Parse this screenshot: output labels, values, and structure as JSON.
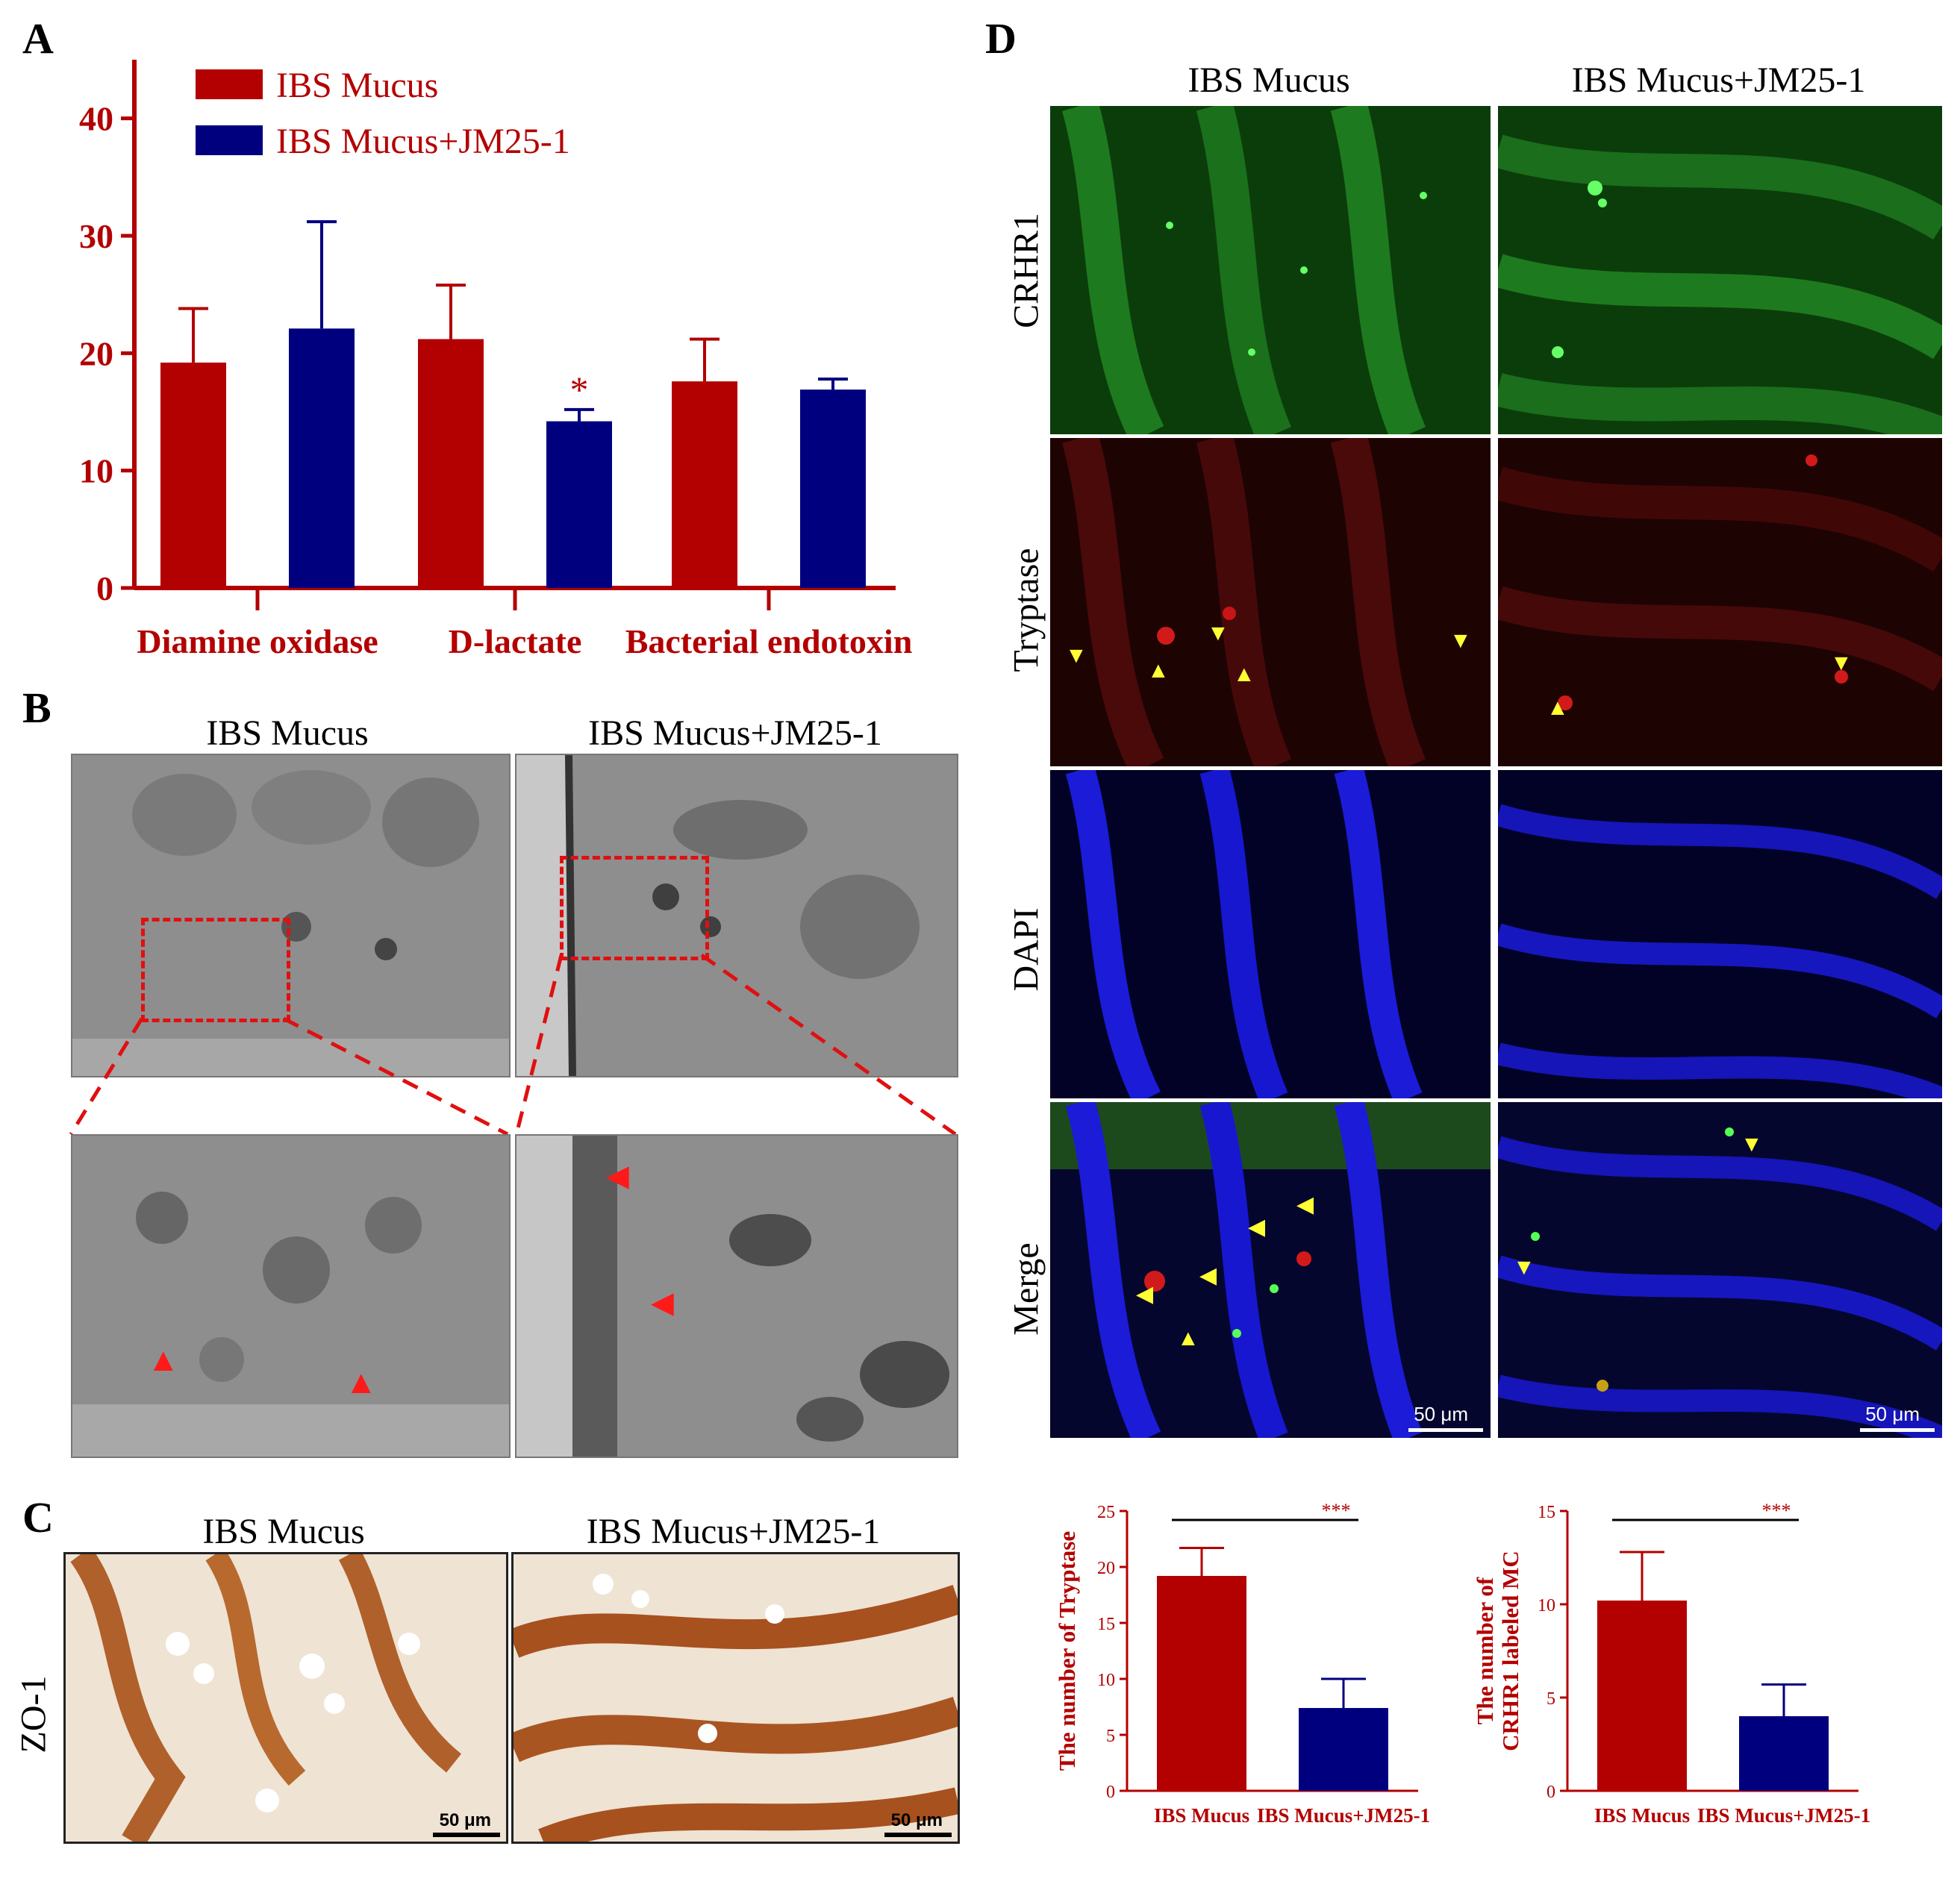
{
  "panels": {
    "a": "A",
    "b": "B",
    "c": "C",
    "d": "D"
  },
  "colors": {
    "ibs": "#b30000",
    "jm": "#00007f",
    "axis": "#b30000",
    "arrow_yellow": "#ffff33",
    "arrow_red": "#ff1a1a"
  },
  "chart_data": [
    {
      "id": "panel-a",
      "type": "bar",
      "categories": [
        "Diamine oxidase",
        "D-lactate",
        "Bacterial endotoxin"
      ],
      "series": [
        {
          "name": "IBS Mucus",
          "values": [
            19.2,
            21.2,
            17.6
          ],
          "errors": [
            4.6,
            4.6,
            3.6
          ]
        },
        {
          "name": "IBS Mucus+JM25-1",
          "values": [
            22.1,
            14.2,
            16.9
          ],
          "errors": [
            9.1,
            1.0,
            0.9
          ]
        }
      ],
      "ylim": [
        0,
        45
      ],
      "yticks": [
        "0",
        "10",
        "20",
        "30",
        "40"
      ],
      "ytick_values": [
        0,
        10,
        20,
        30,
        40
      ],
      "legend": "top-left",
      "significance": [
        {
          "category": "D-lactate",
          "series": 1,
          "label": "*"
        }
      ]
    },
    {
      "id": "panel-d-tryptase",
      "type": "bar",
      "categories": [
        "IBS Mucus",
        "IBS Mucus+JM25-1"
      ],
      "values": [
        19.2,
        7.4
      ],
      "errors": [
        2.5,
        2.6
      ],
      "ylabel": "The number of Tryptase",
      "ylim": [
        0,
        25
      ],
      "yticks": [
        "0",
        "5",
        "10",
        "15",
        "20",
        "25"
      ],
      "ytick_values": [
        0,
        5,
        10,
        15,
        20,
        25
      ],
      "significance": "***"
    },
    {
      "id": "panel-d-crhr1",
      "type": "bar",
      "categories": [
        "IBS Mucus",
        "IBS Mucus+JM25-1"
      ],
      "values": [
        10.2,
        4.0
      ],
      "errors": [
        2.6,
        1.7
      ],
      "ylabel_lines": [
        "The number of",
        "CRHR1 labeled MC"
      ],
      "ylim": [
        0,
        15
      ],
      "yticks": [
        "0",
        "5",
        "10",
        "15"
      ],
      "ytick_values": [
        0,
        5,
        10,
        15
      ],
      "significance": "***"
    }
  ],
  "panel_b": {
    "titles": [
      "IBS Mucus",
      "IBS Mucus+JM25-1"
    ]
  },
  "panel_c": {
    "titles": [
      "IBS Mucus",
      "IBS Mucus+JM25-1"
    ],
    "row_label": "ZO-1",
    "scale": "50 μm"
  },
  "panel_d": {
    "titles": [
      "IBS Mucus",
      "IBS Mucus+JM25-1"
    ],
    "rows": [
      "CRHR1",
      "Tryptase",
      "DAPI",
      "Merge"
    ],
    "scale": "50 μm"
  }
}
